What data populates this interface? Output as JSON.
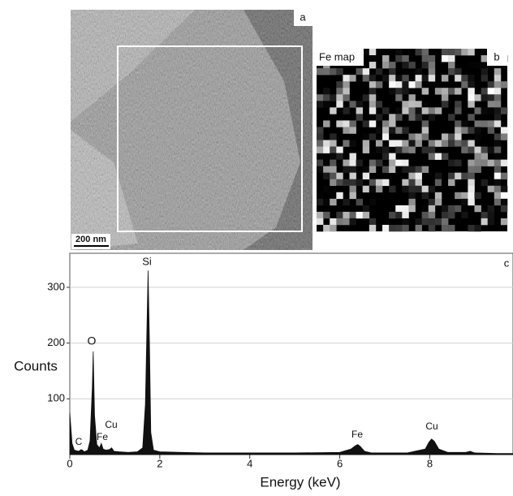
{
  "panels": {
    "a": {
      "label": "a",
      "scale_bar": "200 nm"
    },
    "b": {
      "label": "b",
      "title": "Fe map"
    }
  },
  "chart_data": {
    "type": "area",
    "panel_label": "c",
    "xlabel": "Energy (keV)",
    "ylabel": "Counts",
    "color": "#111111",
    "grid": true,
    "xlim": [
      0,
      9.85
    ],
    "ylim": [
      0,
      361
    ],
    "xticks": [
      0,
      2,
      4,
      6,
      8
    ],
    "yticks": [
      100,
      200,
      300
    ],
    "annotations": [
      "C",
      "Fe",
      "Cu",
      "O",
      "Si",
      "Fe",
      "Cu"
    ],
    "x": [
      0,
      0.05,
      0.1,
      0.2,
      0.25,
      0.28,
      0.32,
      0.4,
      0.45,
      0.5,
      0.52,
      0.55,
      0.6,
      0.66,
      0.7,
      0.74,
      0.8,
      0.88,
      0.93,
      0.98,
      1.1,
      1.3,
      1.5,
      1.62,
      1.68,
      1.72,
      1.74,
      1.77,
      1.8,
      1.86,
      2.0,
      2.5,
      3,
      4,
      5,
      6,
      6.25,
      6.35,
      6.4,
      6.45,
      6.55,
      6.7,
      7,
      7.5,
      7.9,
      7.98,
      8.04,
      8.1,
      8.2,
      8.4,
      8.8,
      8.9,
      9,
      9.5,
      9.85
    ],
    "values": [
      75,
      20,
      8,
      6,
      9,
      8,
      5,
      8,
      25,
      120,
      185,
      70,
      18,
      12,
      20,
      10,
      8,
      9,
      12,
      6,
      5,
      4,
      5,
      12,
      90,
      250,
      330,
      200,
      40,
      8,
      5,
      4,
      3,
      3,
      3,
      4,
      10,
      16,
      18,
      15,
      6,
      3,
      3,
      3,
      10,
      22,
      28,
      24,
      10,
      4,
      4,
      6,
      3,
      2,
      2
    ]
  }
}
